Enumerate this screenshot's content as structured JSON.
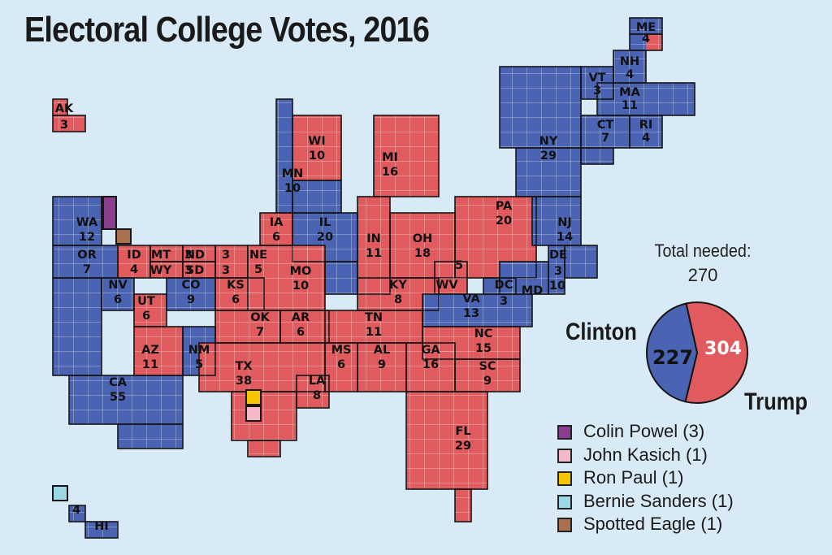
{
  "title": "Electoral College Votes, 2016",
  "colors": {
    "clinton": "#4a63b3",
    "trump": "#e05a5e",
    "faithless": {
      "Colin Powel (3)": "#8b3d8e",
      "John Kasich (1)": "#f4b8c8",
      "Ron Paul (1)": "#f6c400",
      "Bernie Sanders (1)": "#9ad8e8",
      "Spotted Eagle (1)": "#a9714e"
    }
  },
  "states": [
    {
      "abbr": "ME",
      "votes": "4",
      "winner": "split"
    },
    {
      "abbr": "NH",
      "votes": "4",
      "winner": "clinton"
    },
    {
      "abbr": "VT",
      "votes": "3",
      "winner": "clinton"
    },
    {
      "abbr": "MA",
      "votes": "11",
      "winner": "clinton"
    },
    {
      "abbr": "CT",
      "votes": "7",
      "winner": "clinton"
    },
    {
      "abbr": "RI",
      "votes": "4",
      "winner": "clinton"
    },
    {
      "abbr": "NY",
      "votes": "29",
      "winner": "clinton"
    },
    {
      "abbr": "AK",
      "votes": "3",
      "winner": "trump"
    },
    {
      "abbr": "WI",
      "votes": "10",
      "winner": "trump"
    },
    {
      "abbr": "MI",
      "votes": "16",
      "winner": "trump"
    },
    {
      "abbr": "MN",
      "votes": "10",
      "winner": "clinton"
    },
    {
      "abbr": "WA",
      "votes": "12",
      "winner": "clinton"
    },
    {
      "abbr": "PA",
      "votes": "20",
      "winner": "trump"
    },
    {
      "abbr": "NJ",
      "votes": "14",
      "winner": "clinton"
    },
    {
      "abbr": "IA",
      "votes": "6",
      "winner": "trump"
    },
    {
      "abbr": "IL",
      "votes": "20",
      "winner": "clinton"
    },
    {
      "abbr": "IN",
      "votes": "11",
      "winner": "trump"
    },
    {
      "abbr": "OH",
      "votes": "18",
      "winner": "trump"
    },
    {
      "abbr": "OR",
      "votes": "7",
      "winner": "clinton"
    },
    {
      "abbr": "ID",
      "votes": "4",
      "winner": "trump"
    },
    {
      "abbr": "MT",
      "votes": "3",
      "winner": "trump"
    },
    {
      "abbr": "ND",
      "votes": "3",
      "winner": "trump"
    },
    {
      "abbr": "NE",
      "votes": "5",
      "winner": "trump"
    },
    {
      "abbr": "WY",
      "votes": "3",
      "winner": "trump"
    },
    {
      "abbr": "SD",
      "votes": "3",
      "winner": "trump"
    },
    {
      "abbr": "MO",
      "votes": "10",
      "winner": "trump"
    },
    {
      "abbr": "WV",
      "votes": "5",
      "winner": "trump"
    },
    {
      "abbr": "DE",
      "votes": "3",
      "winner": "clinton"
    },
    {
      "abbr": "MD",
      "votes": "10",
      "winner": "clinton"
    },
    {
      "abbr": "DC",
      "votes": "3",
      "winner": "clinton"
    },
    {
      "abbr": "NV",
      "votes": "6",
      "winner": "clinton"
    },
    {
      "abbr": "CO",
      "votes": "9",
      "winner": "clinton"
    },
    {
      "abbr": "KS",
      "votes": "6",
      "winner": "trump"
    },
    {
      "abbr": "KY",
      "votes": "8",
      "winner": "trump"
    },
    {
      "abbr": "VA",
      "votes": "13",
      "winner": "clinton"
    },
    {
      "abbr": "UT",
      "votes": "6",
      "winner": "trump"
    },
    {
      "abbr": "OK",
      "votes": "7",
      "winner": "trump"
    },
    {
      "abbr": "AR",
      "votes": "6",
      "winner": "trump"
    },
    {
      "abbr": "TN",
      "votes": "11",
      "winner": "trump"
    },
    {
      "abbr": "NC",
      "votes": "15",
      "winner": "trump"
    },
    {
      "abbr": "AZ",
      "votes": "11",
      "winner": "trump"
    },
    {
      "abbr": "NM",
      "votes": "5",
      "winner": "clinton"
    },
    {
      "abbr": "MS",
      "votes": "6",
      "winner": "trump"
    },
    {
      "abbr": "AL",
      "votes": "9",
      "winner": "trump"
    },
    {
      "abbr": "GA",
      "votes": "16",
      "winner": "trump"
    },
    {
      "abbr": "SC",
      "votes": "9",
      "winner": "trump"
    },
    {
      "abbr": "TX",
      "votes": "38",
      "winner": "trump"
    },
    {
      "abbr": "CA",
      "votes": "55",
      "winner": "clinton"
    },
    {
      "abbr": "LA",
      "votes": "8",
      "winner": "trump"
    },
    {
      "abbr": "FL",
      "votes": "29",
      "winner": "trump"
    },
    {
      "abbr": "HI",
      "votes": "4",
      "winner": "clinton"
    }
  ],
  "summary": {
    "needed_label": "Total needed:",
    "needed_value": "270",
    "clinton_name": "Clinton",
    "clinton_votes": 227,
    "clinton_votes_label": "227",
    "trump_name": "Trump",
    "trump_votes": 304,
    "trump_votes_label": "304"
  },
  "legend": [
    {
      "label": "Colin Powel (3)"
    },
    {
      "label": "John Kasich (1)"
    },
    {
      "label": "Ron Paul (1)"
    },
    {
      "label": "Bernie Sanders (1)"
    },
    {
      "label": "Spotted Eagle (1)"
    }
  ]
}
